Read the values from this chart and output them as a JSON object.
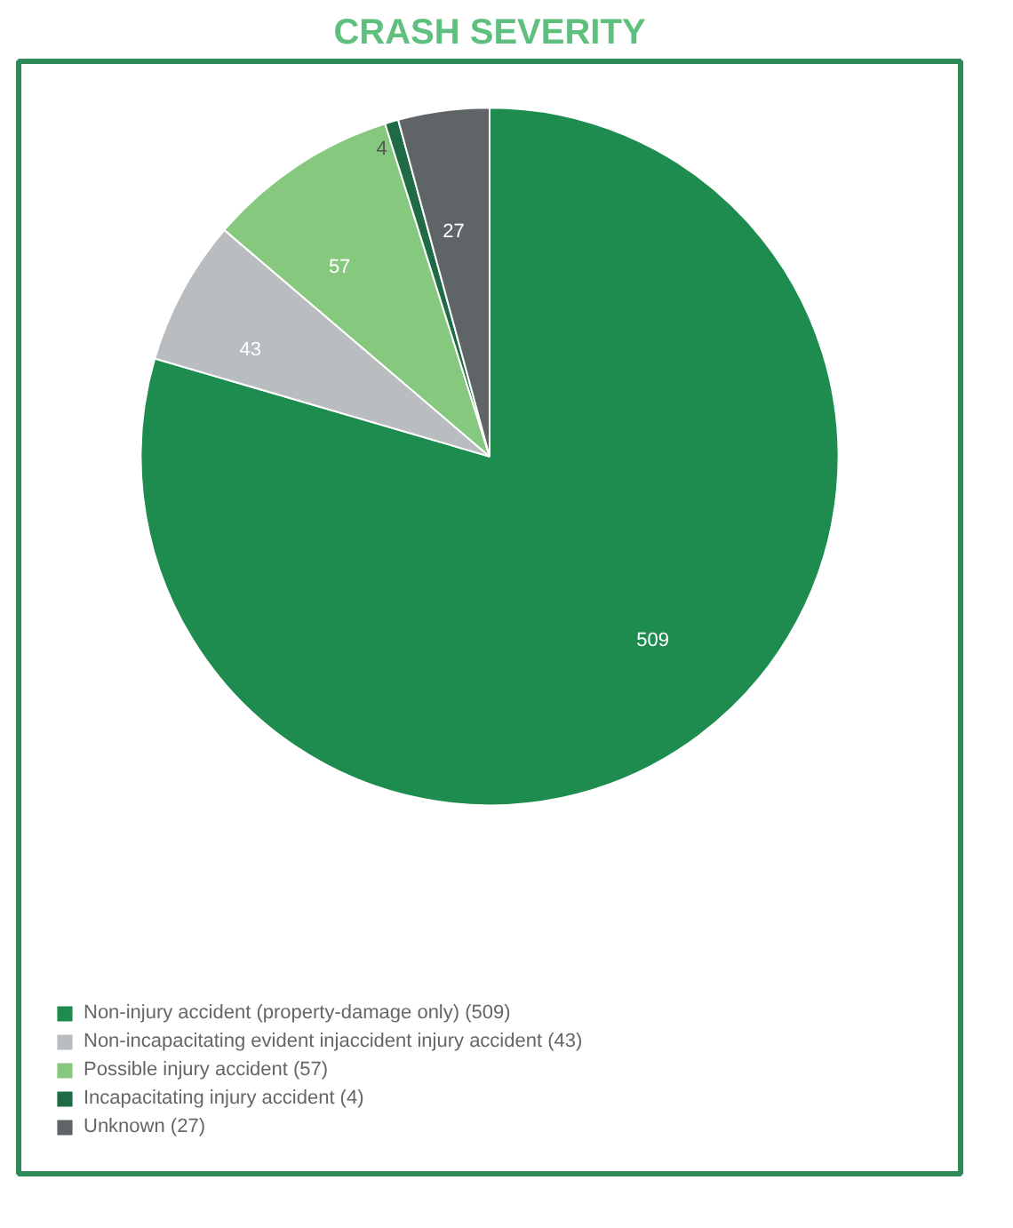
{
  "chart_data": {
    "type": "pie",
    "title": "CRASH SEVERITY",
    "categories": [
      "Non-injury accident (property-damage only) (509)",
      "Non-incapacitating evident injaccident injury accident (43)",
      "Possible injury accident (57)",
      "Incapacitating injury accident (4)",
      "Unknown (27)"
    ],
    "values": [
      509,
      43,
      57,
      4,
      27
    ],
    "colors": [
      "#1e8c4e",
      "#b9bdbf",
      "#86c97e",
      "#1f6b45",
      "#5f6567"
    ],
    "data_labels": true,
    "legend": "bottom"
  }
}
